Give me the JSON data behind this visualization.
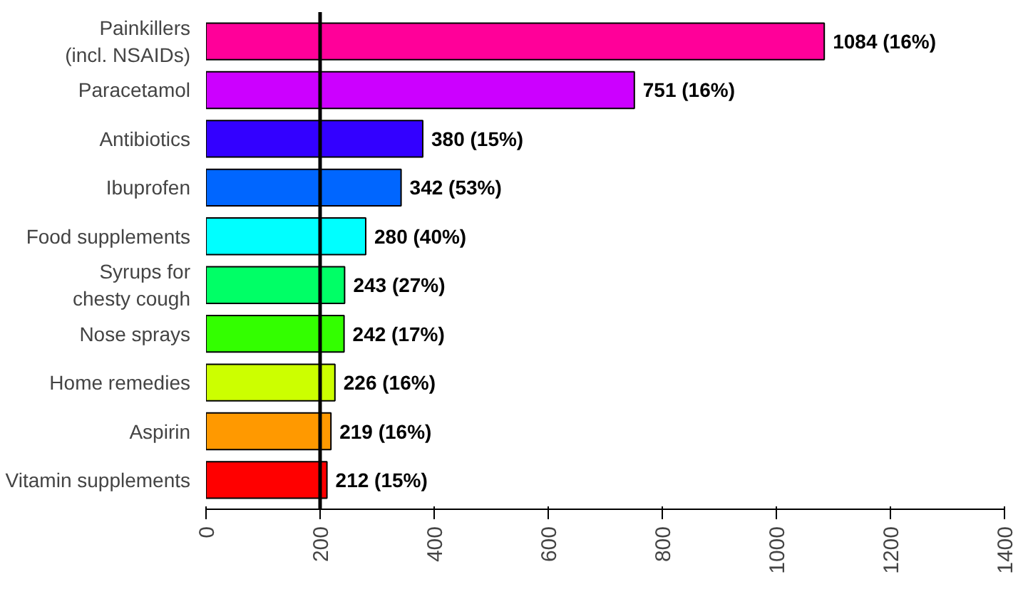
{
  "chart_data": {
    "type": "bar",
    "orientation": "horizontal",
    "categories": [
      "Painkillers\n(incl. NSAIDs)",
      "Paracetamol",
      "Antibiotics",
      "Ibuprofen",
      "Food supplements",
      "Syrups for\nchesty cough",
      "Nose sprays",
      "Home remedies",
      "Aspirin",
      "Vitamin supplements"
    ],
    "values": [
      1084,
      751,
      380,
      342,
      280,
      243,
      242,
      226,
      219,
      212
    ],
    "colors": [
      "#ff0099",
      "#cc00ff",
      "#3300ff",
      "#0066ff",
      "#00ffff",
      "#00ff66",
      "#33ff00",
      "#ccff00",
      "#ff9900",
      "#ff0000"
    ],
    "value_labels": [
      "1084 (16%)",
      "751 (16%)",
      "380 (15%)",
      "342 (53%)",
      "280 (40%)",
      "243 (27%)",
      "242 (17%)",
      "226 (16%)",
      "219 (16%)",
      "212 (15%)"
    ],
    "xlim": [
      0,
      1400
    ],
    "xticks": [
      0,
      200,
      400,
      600,
      800,
      1000,
      1200,
      1400
    ],
    "ref_lines": [
      {
        "axis": "x",
        "value": 200,
        "color": "#000000"
      }
    ],
    "grid": false
  }
}
